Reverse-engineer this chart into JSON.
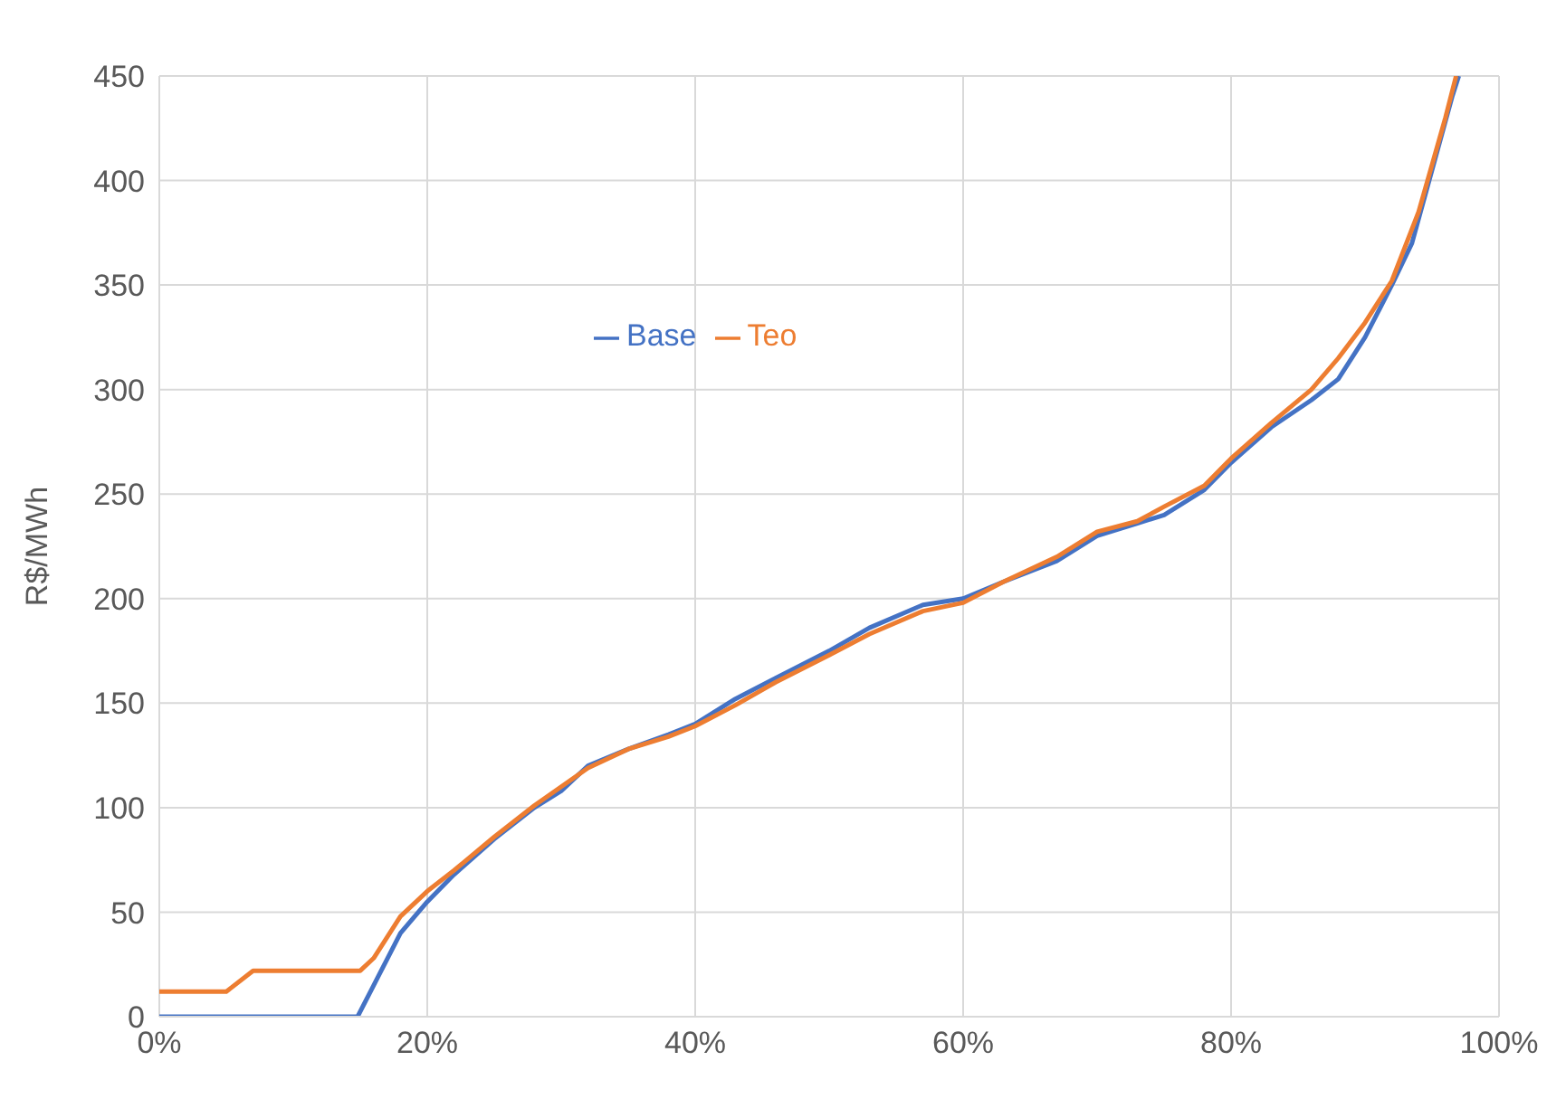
{
  "chart_data": {
    "type": "line",
    "ylabel": "R$/MWh",
    "xlim": [
      0,
      100
    ],
    "xticks": [
      {
        "value": 0,
        "label": "0%"
      },
      {
        "value": 20,
        "label": "20%"
      },
      {
        "value": 40,
        "label": "40%"
      },
      {
        "value": 60,
        "label": "60%"
      },
      {
        "value": 80,
        "label": "80%"
      },
      {
        "value": 100,
        "label": "100%"
      }
    ],
    "ylim": [
      0,
      450
    ],
    "yticks": [
      0,
      50,
      100,
      150,
      200,
      250,
      300,
      350,
      400,
      450
    ],
    "grid": true,
    "legend": "top",
    "marker": "none",
    "line_style": "solid",
    "series": [
      {
        "name": "Base",
        "color": "#4472c4",
        "x": [
          0,
          5,
          10,
          14.8,
          16,
          18,
          20,
          22,
          25,
          28,
          30,
          32,
          35,
          38,
          40,
          43,
          46,
          50,
          53,
          57,
          60,
          63,
          67,
          70,
          73,
          75,
          78,
          80,
          83,
          86,
          88,
          90,
          92,
          93.5,
          95,
          96.5,
          97
        ],
        "values": [
          0,
          0,
          0,
          0,
          15,
          40,
          55,
          68,
          85,
          100,
          108,
          120,
          128,
          135,
          140,
          152,
          162,
          175,
          186,
          197,
          200,
          208,
          218,
          230,
          236,
          240,
          252,
          265,
          282,
          295,
          305,
          325,
          350,
          370,
          405,
          440,
          450
        ]
      },
      {
        "name": "Teo",
        "color": "#ed7d31",
        "x": [
          0,
          5,
          7,
          10,
          15,
          16,
          18,
          20,
          22,
          25,
          28,
          30,
          32,
          35,
          38,
          40,
          43,
          46,
          50,
          53,
          57,
          60,
          63,
          67,
          70,
          73,
          75,
          78,
          80,
          83,
          86,
          88,
          90,
          92,
          94,
          96,
          96.8
        ],
        "values": [
          12,
          12,
          22,
          22,
          22,
          28,
          48,
          60,
          70,
          86,
          101,
          110,
          119,
          128,
          134,
          139,
          149,
          160,
          173,
          183,
          194,
          198,
          208,
          220,
          232,
          237,
          244,
          254,
          267,
          284,
          300,
          315,
          332,
          352,
          385,
          430,
          450
        ]
      }
    ]
  }
}
